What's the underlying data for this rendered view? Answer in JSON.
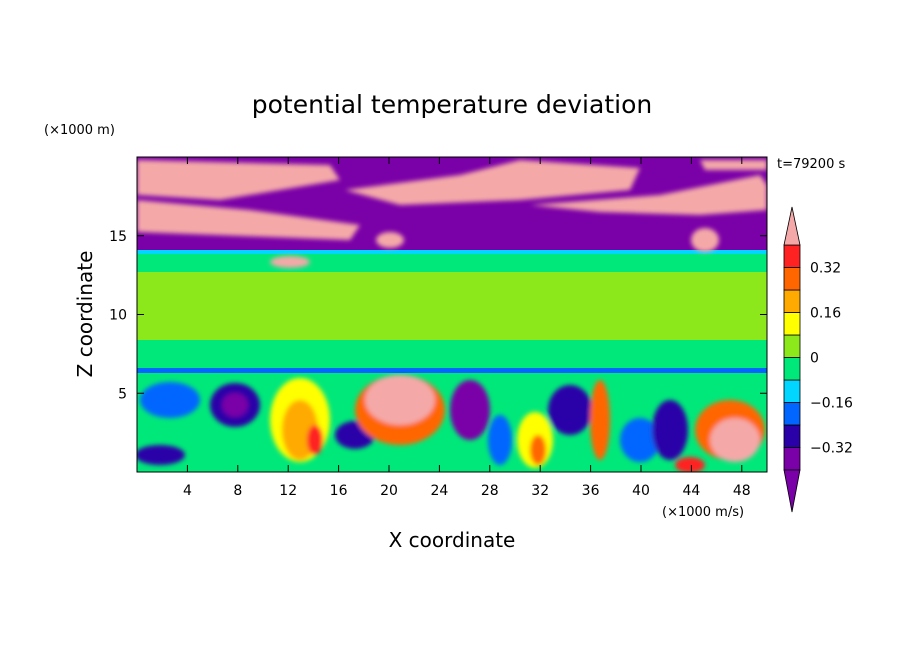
{
  "chart_data": {
    "type": "heatmap",
    "title": "potential temperature deviation",
    "xlabel": "X coordinate",
    "ylabel": "Z coordinate",
    "x_unit": "(×1000 m/s)",
    "y_unit": "(×1000 m)",
    "time_label": "t=79200 s",
    "xlim": [
      0,
      50
    ],
    "ylim": [
      0,
      20
    ],
    "x_ticks": [
      4,
      8,
      12,
      16,
      20,
      24,
      28,
      32,
      36,
      40,
      44,
      48
    ],
    "y_ticks": [
      5,
      10,
      15
    ],
    "colorbar": {
      "levels": [
        -0.4,
        -0.32,
        -0.24,
        -0.16,
        -0.08,
        0,
        0.08,
        0.16,
        0.24,
        0.32,
        0.4
      ],
      "labels": [
        "0.32",
        "0.16",
        "0",
        "−0.16",
        "−0.32"
      ],
      "label_values": [
        0.32,
        0.16,
        0,
        -0.16,
        -0.32
      ],
      "colors": [
        "#7a00a8",
        "#2a00a8",
        "#0066ff",
        "#00d6ff",
        "#00e87a",
        "#8ce81a",
        "#ffff00",
        "#ffaa00",
        "#ff6600",
        "#ff2222"
      ],
      "over_color": "#f4a9a8",
      "under_color": "#7a00a8"
    }
  }
}
